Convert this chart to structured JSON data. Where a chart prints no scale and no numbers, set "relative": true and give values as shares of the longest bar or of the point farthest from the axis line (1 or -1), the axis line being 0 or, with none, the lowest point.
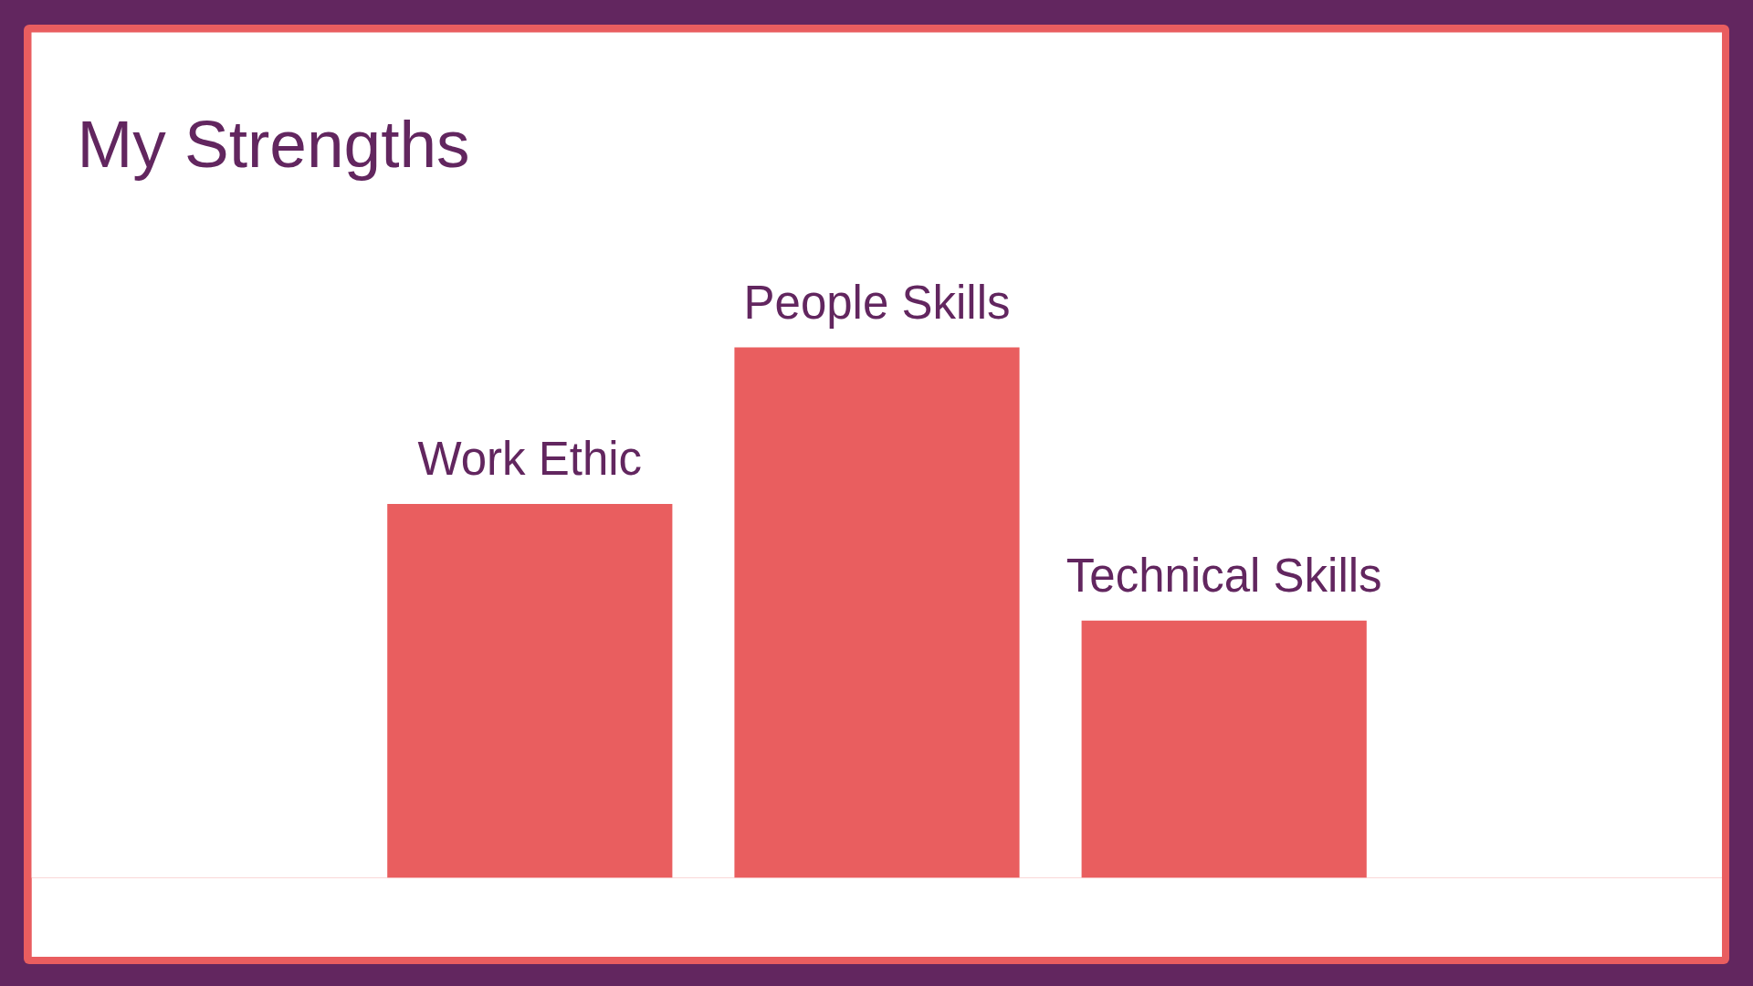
{
  "chart_data": {
    "type": "bar",
    "title": "My Strengths",
    "categories": [
      "Work Ethic",
      "People Skills",
      "Technical Skills"
    ],
    "values": [
      0.705,
      1,
      0.485
    ],
    "color": "#e95e5f",
    "relative": true
  }
}
